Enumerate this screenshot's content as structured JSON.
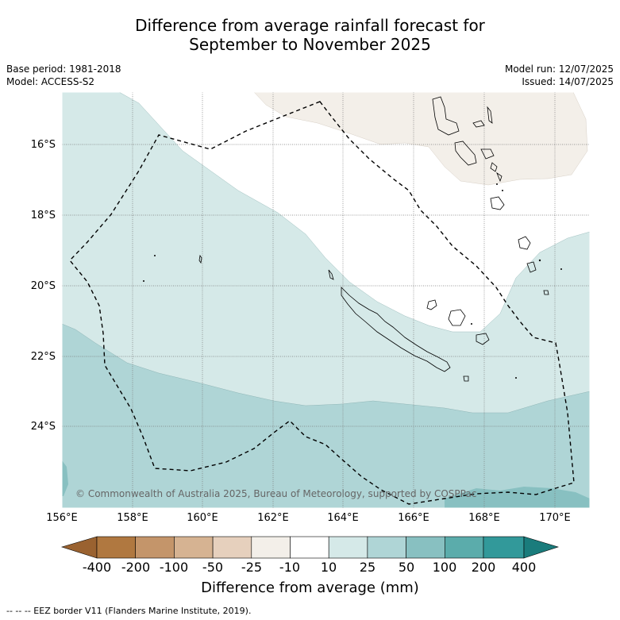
{
  "title_line1": "Difference from average rainfall forecast for",
  "title_line2": "September to November 2025",
  "base_period": "Base period: 1981-2018",
  "model": "Model: ACCESS-S2",
  "model_run": "Model run: 12/07/2025",
  "issued": "Issued: 14/07/2025",
  "latitude_labels": [
    "16°S",
    "18°S",
    "20°S",
    "22°S",
    "24°S"
  ],
  "longitude_labels": [
    "156°E",
    "158°E",
    "160°E",
    "162°E",
    "164°E",
    "166°E",
    "168°E",
    "170°E"
  ],
  "copyright": "© Commonwealth of Australia 2025, Bureau of Meteorology, supported by COSPPac",
  "colorbar": {
    "ticks": [
      "-400",
      "-200",
      "-100",
      "-50",
      "-25",
      "-10",
      "10",
      "25",
      "50",
      "100",
      "200",
      "400"
    ],
    "colors": [
      "#9a6230",
      "#b07840",
      "#c4956a",
      "#d6b392",
      "#e6d0bd",
      "#f3efe9",
      "#ffffff",
      "#d5e9e8",
      "#afd5d6",
      "#88c0c1",
      "#5bacab",
      "#32999a",
      "#1a7c7c"
    ],
    "label": "Difference from average (mm)"
  },
  "legend_footer": "--  --  -- EEZ border V11 (Flanders Marine Institute, 2019)."
}
